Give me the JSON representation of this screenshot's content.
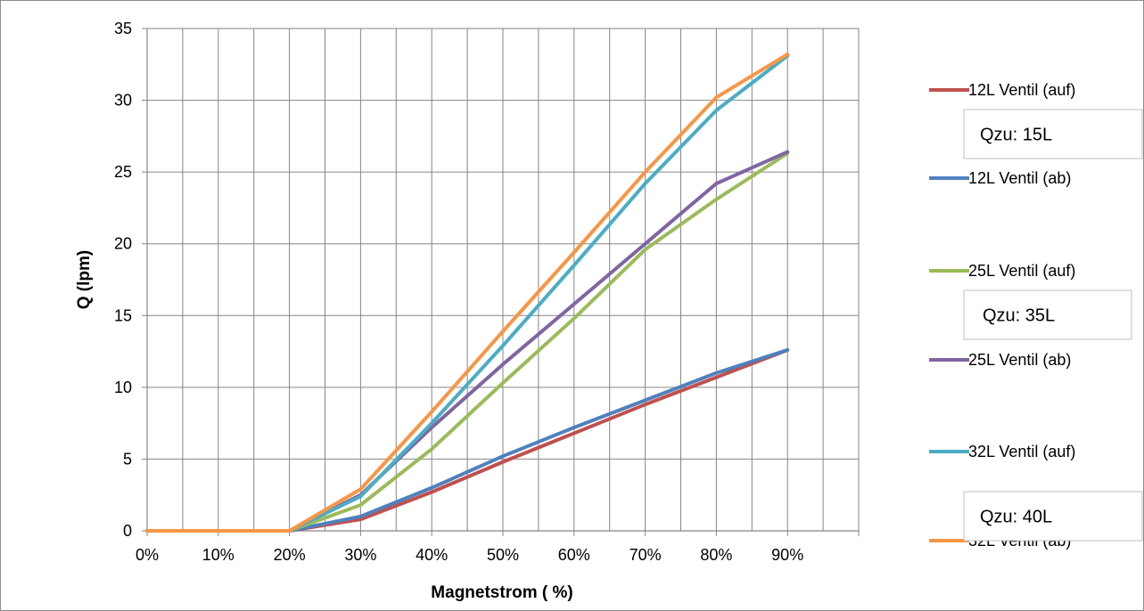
{
  "chart_data": {
    "type": "line",
    "xlabel": "Magnetstrom ( %)",
    "ylabel": "Q (lpm)",
    "ylim": [
      0,
      35
    ],
    "y_ticks": [
      0,
      5,
      10,
      15,
      20,
      25,
      30,
      35
    ],
    "x_ticks": [
      "0%",
      "10%",
      "20%",
      "30%",
      "40%",
      "50%",
      "60%",
      "70%",
      "80%",
      "90%"
    ],
    "x_minor_step": 5,
    "x_range": [
      0,
      100
    ],
    "grid": true,
    "legend_position": "right",
    "series": [
      {
        "name": "12L Ventil (auf)",
        "color": "#c0504d",
        "x": [
          0,
          10,
          20,
          30,
          40,
          50,
          60,
          70,
          80,
          90
        ],
        "y": [
          0,
          0,
          0,
          0.8,
          2.7,
          4.8,
          6.8,
          8.8,
          10.7,
          12.6
        ]
      },
      {
        "name": "12L Ventil (ab)",
        "color": "#4f81bd",
        "x": [
          0,
          10,
          20,
          30,
          40,
          50,
          60,
          70,
          80,
          90
        ],
        "y": [
          0,
          0,
          0,
          1.0,
          3.0,
          5.2,
          7.2,
          9.1,
          11.0,
          12.6
        ]
      },
      {
        "name": "25L Ventil (auf)",
        "color": "#9bbb59",
        "x": [
          0,
          10,
          20,
          30,
          40,
          50,
          60,
          70,
          80,
          90
        ],
        "y": [
          0,
          0,
          0,
          1.8,
          5.7,
          10.3,
          14.8,
          19.6,
          23.1,
          26.3
        ]
      },
      {
        "name": "25L Ventil (ab)",
        "color": "#8064a2",
        "x": [
          0,
          10,
          20,
          30,
          40,
          50,
          60,
          70,
          80,
          90
        ],
        "y": [
          0,
          0,
          0,
          2.5,
          7.2,
          11.6,
          15.8,
          20.0,
          24.2,
          26.4
        ]
      },
      {
        "name": "32L Ventil (auf)",
        "color": "#4bacc6",
        "x": [
          0,
          10,
          20,
          30,
          40,
          50,
          60,
          70,
          80,
          90
        ],
        "y": [
          0,
          0,
          0,
          2.4,
          7.5,
          12.9,
          18.5,
          24.2,
          29.3,
          33.1
        ]
      },
      {
        "name": "32L Ventil (ab)",
        "color": "#f79646",
        "x": [
          0,
          10,
          20,
          30,
          40,
          50,
          60,
          70,
          80,
          90
        ],
        "y": [
          0,
          0,
          0,
          2.9,
          8.3,
          13.9,
          19.4,
          25.0,
          30.2,
          33.2
        ]
      }
    ],
    "annotations": [
      "Qzu: 15L",
      "Qzu: 35L",
      "Qzu: 40L"
    ]
  }
}
